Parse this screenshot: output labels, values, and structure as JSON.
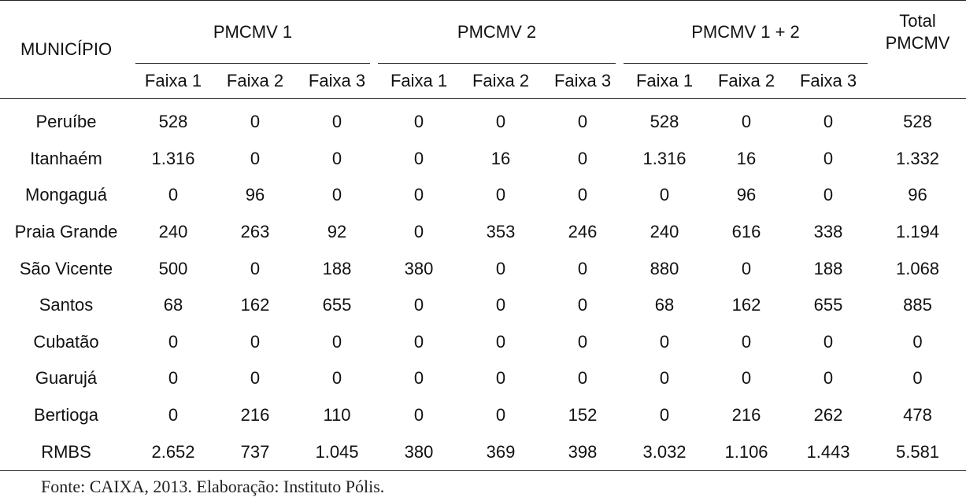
{
  "table": {
    "header": {
      "municipio": "MUNICÍPIO",
      "groups": [
        "PMCMV 1",
        "PMCMV 2",
        "PMCMV 1 + 2"
      ],
      "total_line1": "Total",
      "total_line2": "PMCMV",
      "faixas": [
        "Faixa 1",
        "Faixa 2",
        "Faixa 3",
        "Faixa 1",
        "Faixa 2",
        "Faixa 3",
        "Faixa 1",
        "Faixa 2",
        "Faixa 3"
      ]
    },
    "rows": [
      {
        "municipio": "Peruíbe",
        "values": [
          "528",
          "0",
          "0",
          "0",
          "0",
          "0",
          "528",
          "0",
          "0",
          "528"
        ]
      },
      {
        "municipio": "Itanhaém",
        "values": [
          "1.316",
          "0",
          "0",
          "0",
          "16",
          "0",
          "1.316",
          "16",
          "0",
          "1.332"
        ]
      },
      {
        "municipio": "Mongaguá",
        "values": [
          "0",
          "96",
          "0",
          "0",
          "0",
          "0",
          "0",
          "96",
          "0",
          "96"
        ]
      },
      {
        "municipio": "Praia Grande",
        "values": [
          "240",
          "263",
          "92",
          "0",
          "353",
          "246",
          "240",
          "616",
          "338",
          "1.194"
        ]
      },
      {
        "municipio": "São Vicente",
        "values": [
          "500",
          "0",
          "188",
          "380",
          "0",
          "0",
          "880",
          "0",
          "188",
          "1.068"
        ]
      },
      {
        "municipio": "Santos",
        "values": [
          "68",
          "162",
          "655",
          "0",
          "0",
          "0",
          "68",
          "162",
          "655",
          "885"
        ]
      },
      {
        "municipio": "Cubatão",
        "values": [
          "0",
          "0",
          "0",
          "0",
          "0",
          "0",
          "0",
          "0",
          "0",
          "0"
        ]
      },
      {
        "municipio": "Guarujá",
        "values": [
          "0",
          "0",
          "0",
          "0",
          "0",
          "0",
          "0",
          "0",
          "0",
          "0"
        ]
      },
      {
        "municipio": "Bertioga",
        "values": [
          "0",
          "216",
          "110",
          "0",
          "0",
          "152",
          "0",
          "216",
          "262",
          "478"
        ]
      },
      {
        "municipio": "RMBS",
        "values": [
          "2.652",
          "737",
          "1.045",
          "380",
          "369",
          "398",
          "3.032",
          "1.106",
          "1.443",
          "5.581"
        ]
      }
    ]
  },
  "source": "Fonte: CAIXA, 2013. Elaboração: Instituto Pólis."
}
